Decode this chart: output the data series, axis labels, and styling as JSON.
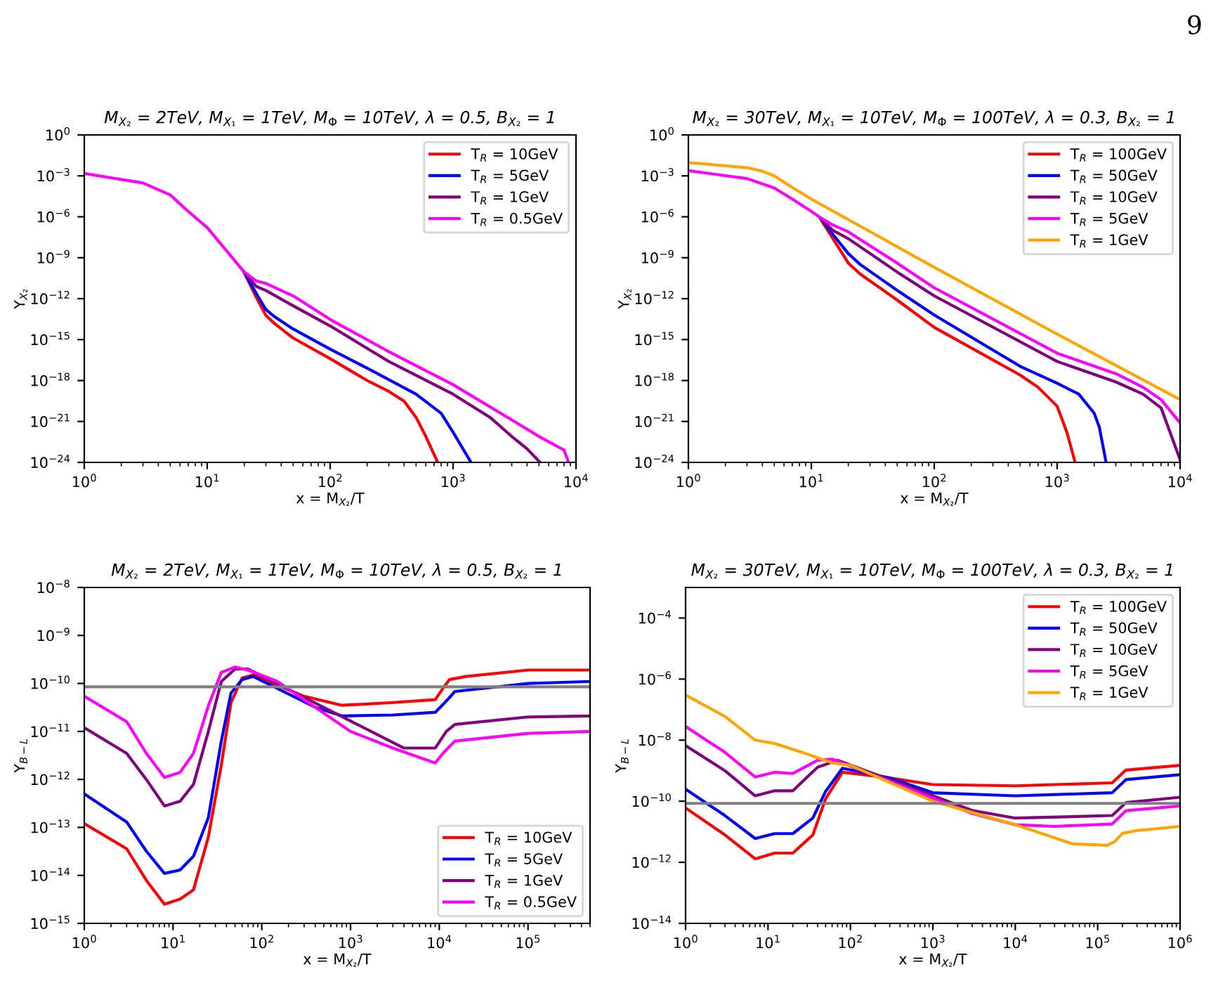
{
  "chart_data": [
    {
      "type": "line",
      "title": "M$_{X₂}$ = 2TeV, M$_{X₁}$ = 1TeV, M$_{Φ}$ = 10TeV, λ = 0.5, B$_{X₂}$ = 1",
      "xlabel": "x = M$_{X₂}$/T",
      "ylabel": "Y$_{X₂}$",
      "annotations": [
        "9"
      ],
      "log": "xy",
      "legend": "top right",
      "line_style": "solid",
      "xlim": [
        1,
        10000
      ],
      "ylim": [
        1e-24,
        1
      ],
      "xticks": [
        {
          "value": 1,
          "label": "10$^{0}$"
        },
        {
          "value": 10,
          "label": "10$^{1}$"
        },
        {
          "value": 100,
          "label": "10$^{2}$"
        },
        {
          "value": 1000,
          "label": "10$^{3}$"
        },
        {
          "value": 10000,
          "label": "10$^{4}$"
        }
      ],
      "yticks": [
        {
          "value": 1e-24,
          "label": "10$^{−24}$"
        },
        {
          "value": 1e-21,
          "label": "10$^{−21}$"
        },
        {
          "value": 1e-18,
          "label": "10$^{−18}$"
        },
        {
          "value": 1e-15,
          "label": "10$^{−15}$"
        },
        {
          "value": 1e-12,
          "label": "10$^{−12}$"
        },
        {
          "value": 1e-09,
          "label": "10$^{−9}$"
        },
        {
          "value": 1e-06,
          "label": "10$^{−6}$"
        },
        {
          "value": 0.001,
          "label": "10$^{−3}$"
        },
        {
          "value": 1,
          "label": "10$^{0}$"
        }
      ],
      "series": [
        {
          "name": "T$_{R}$ = 10GeV",
          "color": "#ff0000",
          "x": [
            20,
            25,
            30,
            35,
            50,
            100,
            200,
            300,
            400,
            500,
            600,
            750
          ],
          "values": [
            8e-11,
            1.3e-12,
            6e-14,
            1.6e-14,
            1.3e-15,
            4e-17,
            1e-18,
            1.6e-19,
            3e-20,
            2e-21,
            8e-23,
            1e-24
          ]
        },
        {
          "name": "T$_{R}$ = 5GeV",
          "color": "#0000ff",
          "x": [
            20,
            25,
            30,
            35,
            50,
            100,
            200,
            500,
            800,
            1000,
            1400
          ],
          "values": [
            8.5e-11,
            2.5e-12,
            1.6e-13,
            5e-14,
            6e-15,
            2e-16,
            8e-18,
            1e-19,
            4e-21,
            1.6e-22,
            1e-24
          ]
        },
        {
          "name": "T$_{R}$ = 1GeV",
          "color": "#800080",
          "x": [
            20,
            25,
            30,
            50,
            100,
            300,
            1000,
            2000,
            3000,
            4000,
            5100
          ],
          "values": [
            9e-11,
            8e-12,
            4e-12,
            3e-13,
            1e-14,
            2.5e-17,
            1e-19,
            2e-21,
            8e-23,
            1e-23,
            1e-24
          ]
        },
        {
          "name": "T$_{R}$ = 0.5GeV",
          "color": "#ff00ff",
          "x": [
            1,
            3,
            5,
            7,
            10,
            15,
            20,
            25,
            30,
            50,
            100,
            300,
            1000,
            3000,
            5000,
            8000,
            8700
          ],
          "values": [
            0.0015,
            0.0003,
            4e-05,
            2.5e-06,
            1.6e-07,
            2e-09,
            9e-11,
            2e-11,
            1.3e-11,
            1.6e-12,
            3e-14,
            1.3e-16,
            5e-19,
            1.3e-21,
            8e-23,
            8e-24,
            1e-24
          ]
        }
      ]
    },
    {
      "type": "line",
      "title": "M$_{X₂}$ = 30TeV, M$_{X₁}$ = 10TeV, M$_{Φ}$ = 100TeV, λ = 0.3, B$_{X₂}$ = 1",
      "xlabel": "x = M$_{X₂}$/T",
      "ylabel": "Y$_{X₂}$",
      "log": "xy",
      "legend": "top right",
      "line_style": "solid",
      "xlim": [
        1,
        10000
      ],
      "ylim": [
        1e-24,
        1
      ],
      "xticks": [
        {
          "value": 1,
          "label": "10$^{0}$"
        },
        {
          "value": 10,
          "label": "10$^{1}$"
        },
        {
          "value": 100,
          "label": "10$^{2}$"
        },
        {
          "value": 1000,
          "label": "10$^{3}$"
        },
        {
          "value": 10000,
          "label": "10$^{4}$"
        }
      ],
      "yticks": [
        {
          "value": 1e-24,
          "label": "10$^{−24}$"
        },
        {
          "value": 1e-21,
          "label": "10$^{−21}$"
        },
        {
          "value": 1e-18,
          "label": "10$^{−18}$"
        },
        {
          "value": 1e-15,
          "label": "10$^{−15}$"
        },
        {
          "value": 1e-12,
          "label": "10$^{−12}$"
        },
        {
          "value": 1e-09,
          "label": "10$^{−9}$"
        },
        {
          "value": 1e-06,
          "label": "10$^{−6}$"
        },
        {
          "value": 0.001,
          "label": "10$^{−3}$"
        },
        {
          "value": 1,
          "label": "10$^{0}$"
        }
      ],
      "series": [
        {
          "name": "T$_{R}$ = 100GeV",
          "color": "#ff0000",
          "x": [
            12,
            15,
            20,
            25,
            50,
            100,
            500,
            700,
            1000,
            1200,
            1400
          ],
          "values": [
            6e-07,
            2.5e-08,
            4e-10,
            6.3e-11,
            7.9e-13,
            7.9e-15,
            2.5e-18,
            3.2e-19,
            1.3e-20,
            1.6e-22,
            1e-24
          ]
        },
        {
          "name": "T$_{R}$ = 50GeV",
          "color": "#0000ff",
          "x": [
            12,
            15,
            20,
            25,
            50,
            100,
            500,
            1000,
            1500,
            2000,
            2200,
            2500
          ],
          "values": [
            7e-07,
            5e-08,
            2e-09,
            3.2e-10,
            4e-12,
            6.3e-14,
            1.1e-17,
            6.3e-19,
            1e-19,
            4e-21,
            4e-22,
            1e-24
          ]
        },
        {
          "name": "T$_{R}$ = 10GeV",
          "color": "#800080",
          "x": [
            12,
            15,
            20,
            50,
            100,
            1000,
            3000,
            5000,
            7000,
            10000
          ],
          "values": [
            7.5e-07,
            1e-07,
            2.5e-08,
            8.9e-11,
            1.6e-12,
            2.5e-17,
            7.9e-19,
            1e-19,
            1e-20,
            1.6e-24
          ]
        },
        {
          "name": "T$_{R}$ = 5GeV",
          "color": "#ff00ff",
          "x": [
            1,
            3,
            5,
            7,
            10,
            12,
            15,
            20,
            50,
            100,
            1000,
            3000,
            5000,
            7000,
            10000
          ],
          "values": [
            0.0024,
            0.00063,
            0.00013,
            2e-05,
            2.5e-06,
            8e-07,
            2.5e-07,
            7.9e-08,
            4e-10,
            6.3e-12,
            1e-16,
            3.2e-18,
            3.2e-19,
            4e-20,
            7.9e-22
          ]
        },
        {
          "name": "T$_{R}$ = 1GeV",
          "color": "#ffa500",
          "x": [
            1,
            3,
            4,
            5,
            7,
            10,
            100,
            1000,
            10000
          ],
          "values": [
            0.0093,
            0.004,
            0.0022,
            0.001,
            0.00014,
            2e-05,
            2e-10,
            2.5e-15,
            4e-20
          ]
        }
      ]
    },
    {
      "type": "line",
      "title": "M$_{X₂}$ = 2TeV, M$_{X₁}$ = 1TeV, M$_{Φ}$ = 10TeV, λ = 0.5, B$_{X₂}$ = 1",
      "xlabel": "x = M$_{X₂}$/T",
      "ylabel": "Y$_{B−L}$",
      "log": "xy",
      "legend": "bottom right",
      "line_style": "solid",
      "xlim": [
        1,
        500000
      ],
      "ylim": [
        1e-15,
        1e-08
      ],
      "xticks": [
        {
          "value": 1,
          "label": "10$^{0}$"
        },
        {
          "value": 10,
          "label": "10$^{1}$"
        },
        {
          "value": 100,
          "label": "10$^{2}$"
        },
        {
          "value": 1000,
          "label": "10$^{3}$"
        },
        {
          "value": 10000,
          "label": "10$^{4}$"
        },
        {
          "value": 100000,
          "label": "10$^{5}$"
        }
      ],
      "yticks": [
        {
          "value": 1e-15,
          "label": "10$^{−15}$"
        },
        {
          "value": 1e-14,
          "label": "10$^{−14}$"
        },
        {
          "value": 1e-13,
          "label": "10$^{−13}$"
        },
        {
          "value": 1e-12,
          "label": "10$^{−12}$"
        },
        {
          "value": 1e-11,
          "label": "10$^{−11}$"
        },
        {
          "value": 1e-10,
          "label": "10$^{−10}$"
        },
        {
          "value": 1e-09,
          "label": "10$^{−9}$"
        },
        {
          "value": 1e-08,
          "label": "10$^{−8}$"
        }
      ],
      "ref_lines": [
        {
          "axis": "y",
          "value": 8.5e-11,
          "color": "#808080"
        }
      ],
      "series": [
        {
          "name": "T$_{R}$ = 10GeV",
          "color": "#ff0000",
          "x": [
            1,
            3,
            5,
            8,
            12,
            17,
            25,
            35,
            45,
            60,
            80,
            300,
            800,
            3000,
            9000,
            11000,
            13000,
            20000,
            100000,
            500000
          ],
          "values": [
            1.2e-13,
            3.6e-14,
            7.9e-15,
            2.5e-15,
            3.2e-15,
            5e-15,
            6.3e-14,
            2e-12,
            4e-11,
            1.3e-10,
            1.5e-10,
            5.4e-11,
            3.5e-11,
            4e-11,
            4.6e-11,
            7.9e-11,
            1.2e-10,
            1.4e-10,
            1.9e-10,
            1.9e-10
          ]
        },
        {
          "name": "T$_{R}$ = 5GeV",
          "color": "#0000ff",
          "x": [
            1,
            3,
            5,
            8,
            12,
            17,
            25,
            35,
            45,
            60,
            80,
            400,
            800,
            3000,
            9000,
            12000,
            15000,
            100000,
            500000
          ],
          "values": [
            5e-13,
            1.3e-13,
            3.2e-14,
            1.1e-14,
            1.3e-14,
            2.5e-14,
            1.6e-13,
            6.3e-12,
            6.3e-11,
            1.2e-10,
            1.4e-10,
            3.2e-11,
            2.1e-11,
            2.2e-11,
            2.5e-11,
            4.3e-11,
            6.8e-11,
            1e-10,
            1.1e-10
          ]
        },
        {
          "name": "T$_{R}$ = 1GeV",
          "color": "#800080",
          "x": [
            1,
            3,
            5,
            8,
            12,
            17,
            25,
            35,
            50,
            70,
            4000,
            9000,
            12000,
            15000,
            100000,
            500000
          ],
          "values": [
            1.2e-11,
            3.5e-12,
            1e-12,
            2.8e-13,
            3.5e-13,
            7.9e-13,
            1e-11,
            1.1e-10,
            2e-10,
            2e-10,
            4.5e-12,
            4.5e-12,
            1e-11,
            1.4e-11,
            2e-11,
            2.1e-11
          ]
        },
        {
          "name": "T$_{R}$ = 0.5GeV",
          "color": "#ff00ff",
          "x": [
            1,
            3,
            5,
            8,
            12,
            17,
            25,
            35,
            50,
            70,
            150,
            1000,
            3000,
            9000,
            11000,
            15000,
            100000,
            500000
          ],
          "values": [
            5.4e-11,
            1.6e-11,
            3.5e-12,
            1.1e-12,
            1.4e-12,
            3.5e-12,
            3.4e-11,
            1.7e-10,
            2.2e-10,
            1.9e-10,
            1.1e-10,
            1e-11,
            4.5e-12,
            2.2e-12,
            3.5e-12,
            6.3e-12,
            9.1e-12,
            1e-11
          ]
        }
      ]
    },
    {
      "type": "line",
      "title": "M$_{X₂}$ = 30TeV, M$_{X₁}$ = 10TeV, M$_{Φ}$ = 100TeV, λ = 0.3, B$_{X₂}$ = 1",
      "xlabel": "x = M$_{X₂}$/T",
      "ylabel": "Y$_{B−L}$",
      "log": "xy",
      "legend": "top right",
      "line_style": "solid",
      "xlim": [
        1,
        1000000
      ],
      "ylim": [
        1e-14,
        0.001
      ],
      "xticks": [
        {
          "value": 1,
          "label": "10$^{0}$"
        },
        {
          "value": 10,
          "label": "10$^{1}$"
        },
        {
          "value": 100,
          "label": "10$^{2}$"
        },
        {
          "value": 1000,
          "label": "10$^{3}$"
        },
        {
          "value": 10000,
          "label": "10$^{4}$"
        },
        {
          "value": 100000,
          "label": "10$^{5}$"
        },
        {
          "value": 1000000,
          "label": "10$^{6}$"
        }
      ],
      "yticks": [
        {
          "value": 1e-14,
          "label": "10$^{−14}$"
        },
        {
          "value": 1e-12,
          "label": "10$^{−12}$"
        },
        {
          "value": 1e-10,
          "label": "10$^{−10}$"
        },
        {
          "value": 1e-08,
          "label": "10$^{−8}$"
        },
        {
          "value": 1e-06,
          "label": "10$^{−6}$"
        },
        {
          "value": 0.0001,
          "label": "10$^{−4}$"
        }
      ],
      "ref_lines": [
        {
          "axis": "y",
          "value": 8.5e-11,
          "color": "#808080"
        }
      ],
      "series": [
        {
          "name": "T$_{R}$ = 100GeV",
          "color": "#ff0000",
          "x": [
            1,
            3,
            7,
            12,
            20,
            35,
            50,
            80,
            300,
            1000,
            10000,
            150000,
            220000,
            1000000
          ],
          "values": [
            6e-11,
            7.9e-12,
            1.3e-12,
            2e-12,
            2e-12,
            7.9e-12,
            1.2e-10,
            8.9e-10,
            5.8e-10,
            3.5e-10,
            3.2e-10,
            4e-10,
            1.05e-09,
            1.5e-09
          ]
        },
        {
          "name": "T$_{R}$ = 50GeV",
          "color": "#0000ff",
          "x": [
            1,
            3,
            7,
            12,
            20,
            35,
            50,
            80,
            300,
            1000,
            10000,
            150000,
            220000,
            1000000
          ],
          "values": [
            2.5e-10,
            3.4e-11,
            6e-12,
            8.7e-12,
            8.7e-12,
            2.8e-11,
            2.1e-10,
            1.2e-09,
            5.8e-10,
            1.9e-10,
            1.5e-10,
            1.9e-10,
            5.1e-10,
            7.4e-10
          ]
        },
        {
          "name": "T$_{R}$ = 10GeV",
          "color": "#800080",
          "x": [
            1,
            3,
            7,
            12,
            20,
            40,
            70,
            3000,
            10000,
            150000,
            220000,
            1000000
          ],
          "values": [
            6.6e-09,
            1e-09,
            1.5e-10,
            2.2e-10,
            2.2e-10,
            1.3e-09,
            2.2e-09,
            5e-11,
            2.8e-11,
            3.4e-11,
            9e-11,
            1.35e-10
          ]
        },
        {
          "name": "T$_{R}$ = 5GeV",
          "color": "#ff00ff",
          "x": [
            1,
            3,
            7,
            12,
            20,
            40,
            60,
            3000,
            10000,
            30000,
            150000,
            220000,
            1000000
          ],
          "values": [
            2.8e-08,
            4e-09,
            6.2e-10,
            8.9e-10,
            8.1e-10,
            2.2e-09,
            2.4e-09,
            4e-11,
            1.7e-11,
            1.5e-11,
            1.8e-11,
            4.9e-11,
            7e-11
          ]
        },
        {
          "name": "T$_{R}$ = 1GeV",
          "color": "#ffa500",
          "x": [
            1,
            3,
            7,
            12,
            30,
            60,
            100,
            1000,
            10000,
            50000,
            130000,
            160000,
            200000,
            300000,
            1000000
          ],
          "values": [
            3e-07,
            6e-08,
            1e-08,
            7.8e-09,
            3.5e-09,
            1.8e-09,
            1.5e-09,
            1e-10,
            1.7e-11,
            4e-12,
            3.6e-12,
            4.7e-12,
            8.9e-12,
            1.1e-11,
            1.5e-11
          ]
        }
      ]
    }
  ]
}
